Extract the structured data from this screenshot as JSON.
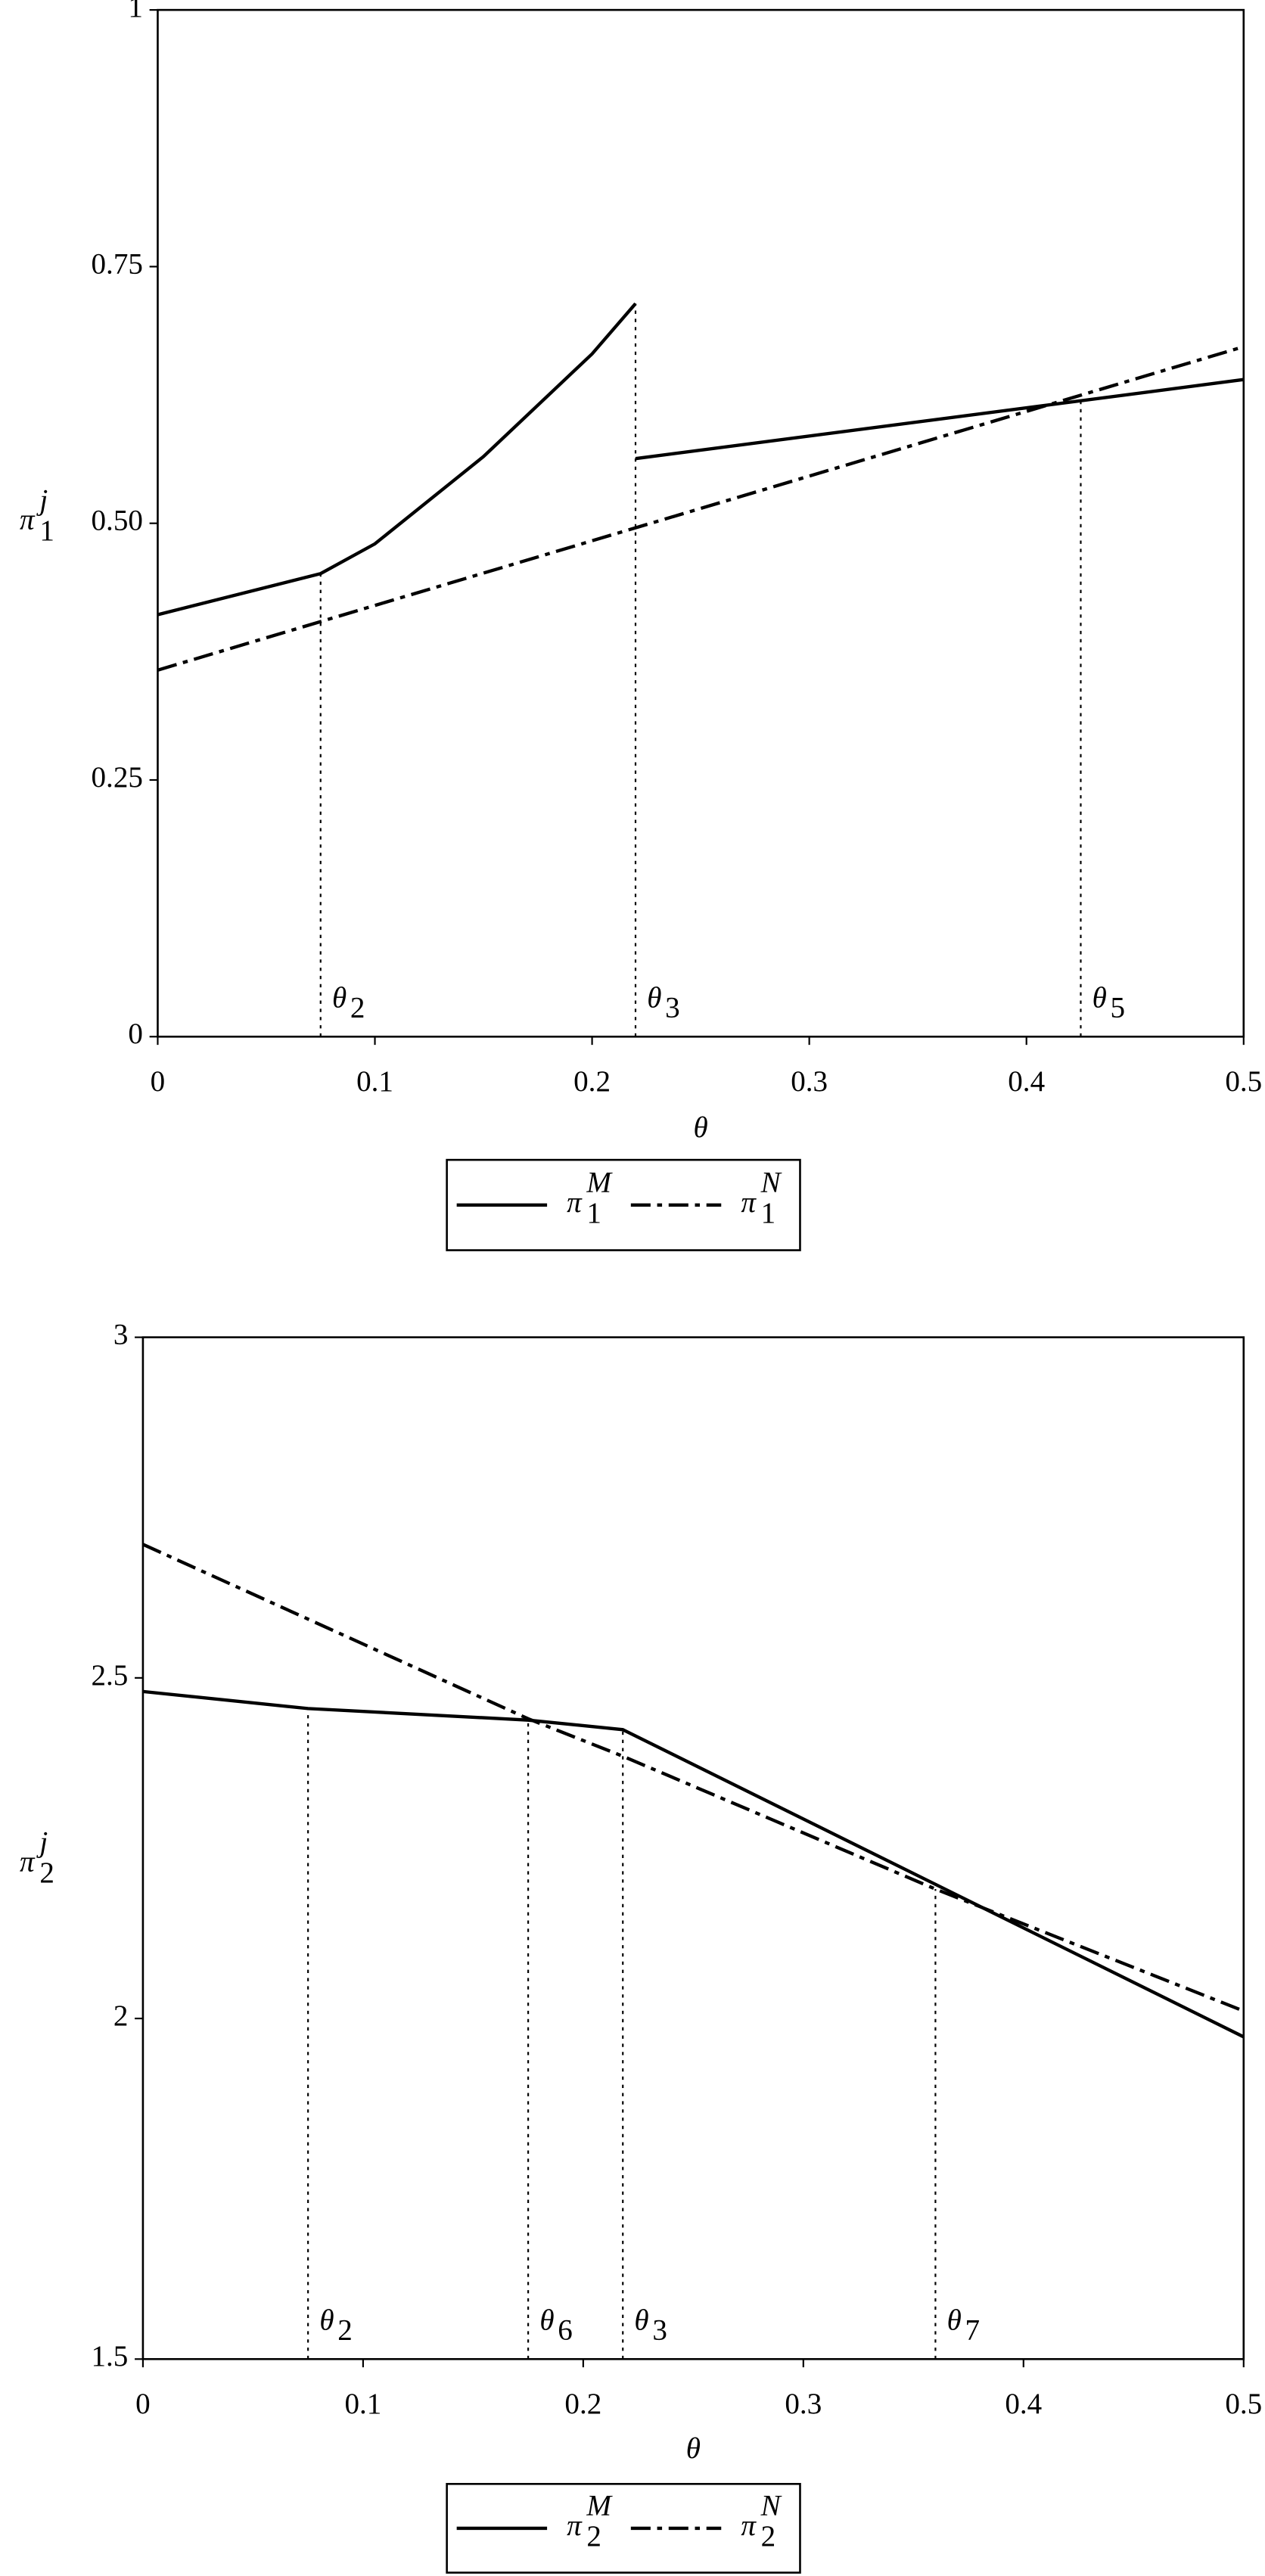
{
  "chart_data": [
    {
      "type": "line",
      "y_label": {
        "symbol": "π",
        "sub": "1",
        "sup": "j"
      },
      "x_label": "θ",
      "xlim": [
        0,
        0.5
      ],
      "xticks": [
        0,
        0.1,
        0.2,
        0.3,
        0.4,
        0.5
      ],
      "ylim": [
        0,
        1
      ],
      "yticks": [
        0,
        0.25,
        {
          "value": 0.5,
          "label": "0.50"
        },
        0.75,
        1
      ],
      "series": [
        {
          "name": {
            "symbol": "π",
            "sub": "1",
            "sup": "M"
          },
          "color": "#000000",
          "style": "solid",
          "x": [
            0,
            0.075,
            0.1,
            0.15,
            0.2,
            0.22,
            0.22,
            0.22,
            0.5
          ],
          "values": [
            0.411,
            0.451,
            0.48,
            0.565,
            0.665,
            0.714,
            null,
            0.563,
            0.64
          ]
        },
        {
          "name": {
            "symbol": "π",
            "sub": "1",
            "sup": "N"
          },
          "color": "#000000",
          "style": "dashdot",
          "x": [
            0,
            0.5
          ],
          "values": [
            0.357,
            0.672
          ]
        }
      ],
      "markers": [
        {
          "x": 0.075,
          "y": 0.451,
          "symbol": "θ",
          "sub": "2"
        },
        {
          "x": 0.22,
          "y": 0.714,
          "symbol": "θ",
          "sub": "3"
        },
        {
          "x": 0.425,
          "y": 0.62,
          "symbol": "θ",
          "sub": "5"
        }
      ]
    },
    {
      "type": "line",
      "y_label": {
        "symbol": "π",
        "sub": "2",
        "sup": "j"
      },
      "x_label": "θ",
      "xlim": [
        0,
        0.5
      ],
      "xticks": [
        0,
        0.1,
        0.2,
        0.3,
        0.4,
        0.5
      ],
      "ylim": [
        1.5,
        3
      ],
      "yticks": [
        1.5,
        2,
        2.5,
        3
      ],
      "series": [
        {
          "name": {
            "symbol": "π",
            "sub": "2",
            "sup": "M"
          },
          "color": "#000000",
          "style": "solid",
          "x": [
            0,
            0.075,
            0.175,
            0.218,
            0.5
          ],
          "values": [
            2.48,
            2.455,
            2.438,
            2.424,
            1.973
          ]
        },
        {
          "name": {
            "symbol": "π",
            "sub": "2",
            "sup": "N"
          },
          "color": "#000000",
          "style": "dashdot",
          "x": [
            0,
            0.175,
            0.218,
            0.36,
            0.5
          ],
          "values": [
            2.696,
            2.44,
            2.385,
            2.19,
            2.011
          ]
        }
      ],
      "markers": [
        {
          "x": 0.075,
          "y": 2.455,
          "symbol": "θ",
          "sub": "2"
        },
        {
          "x": 0.175,
          "y": 2.44,
          "symbol": "θ",
          "sub": "6"
        },
        {
          "x": 0.218,
          "y": 2.424,
          "symbol": "θ",
          "sub": "3"
        },
        {
          "x": 0.36,
          "y": 2.19,
          "symbol": "θ",
          "sub": "7"
        }
      ]
    }
  ]
}
